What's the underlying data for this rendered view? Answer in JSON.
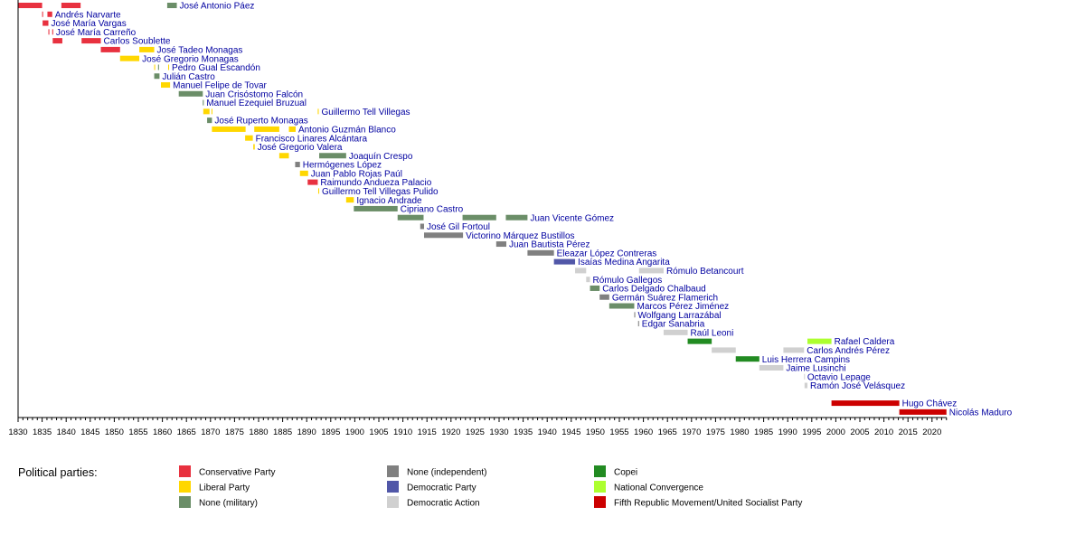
{
  "chart_data": {
    "type": "timeline",
    "xlim": [
      1830,
      2023
    ],
    "tick_labels": [
      "1830",
      "1835",
      "1840",
      "1845",
      "1850",
      "1855",
      "1860",
      "1865",
      "1870",
      "1875",
      "1880",
      "1885",
      "1890",
      "1895",
      "1900",
      "1905",
      "1910",
      "1915",
      "1920",
      "1925",
      "1930",
      "1935",
      "1940",
      "1945",
      "1950",
      "1955",
      "1960",
      "1965",
      "1970",
      "1975",
      "1980",
      "1985",
      "1990",
      "1995",
      "2000",
      "2005",
      "2010",
      "2015",
      "2020"
    ],
    "legend_title": "Political parties:",
    "parties": {
      "C": {
        "name": "Conservative Party",
        "color": "#e8313f"
      },
      "L": {
        "name": "Liberal Party",
        "color": "#ffd700"
      },
      "M": {
        "name": "None (military)",
        "color": "#6b8e68"
      },
      "I": {
        "name": "None (independent)",
        "color": "#808080"
      },
      "D": {
        "name": "Democratic Party",
        "color": "#5157a8"
      },
      "AD": {
        "name": "Democratic Action",
        "color": "#d0d0d0"
      },
      "CO": {
        "name": "Copei",
        "color": "#228b22"
      },
      "NC": {
        "name": "National Convergence",
        "color": "#adff2f"
      },
      "MVR": {
        "name": "Fifth Republic Movement/United Socialist Party",
        "color": "#cc0000"
      }
    },
    "legend_order": [
      "C",
      "L",
      "M",
      "I",
      "D",
      "AD",
      "CO",
      "NC",
      "MVR"
    ],
    "rows": [
      {
        "name": "José Antonio Páez",
        "terms": [
          [
            1830,
            1835,
            "C"
          ],
          [
            1839,
            1843,
            "C"
          ],
          [
            1861,
            1863,
            "M"
          ]
        ]
      },
      {
        "name": "Andrés Narvarte",
        "terms": [
          [
            1835,
            1835.2,
            "C"
          ],
          [
            1836.1,
            1837.1,
            "C"
          ]
        ]
      },
      {
        "name": "José María Vargas",
        "terms": [
          [
            1835.1,
            1836.3,
            "C"
          ]
        ]
      },
      {
        "name": "José María Carreño",
        "terms": [
          [
            1836.3,
            1836.5,
            "C"
          ],
          [
            1837.1,
            1837.3,
            "C"
          ]
        ]
      },
      {
        "name": "Carlos Soublette",
        "terms": [
          [
            1837.2,
            1839.2,
            "C"
          ],
          [
            1843.2,
            1847.2,
            "C"
          ]
        ]
      },
      {
        "name": "José Tadeo Monagas",
        "terms": [
          [
            1847.2,
            1851.2,
            "C"
          ],
          [
            1855.2,
            1858.3,
            "L"
          ]
        ]
      },
      {
        "name": "José Gregorio Monagas",
        "terms": [
          [
            1851.2,
            1855.2,
            "L"
          ]
        ]
      },
      {
        "name": "Pedro Gual Escandón",
        "terms": [
          [
            1858.3,
            1858.5,
            "L"
          ],
          [
            1859.1,
            1859.3,
            "M"
          ],
          [
            1861.2,
            1861.4,
            "L"
          ]
        ]
      },
      {
        "name": "Julián Castro",
        "terms": [
          [
            1858.3,
            1859.4,
            "M"
          ]
        ]
      },
      {
        "name": "Manuel Felipe de Tovar",
        "terms": [
          [
            1859.7,
            1861.6,
            "L"
          ]
        ]
      },
      {
        "name": "Juan Crisóstomo Falcón",
        "terms": [
          [
            1863.4,
            1868.4,
            "M"
          ]
        ]
      },
      {
        "name": "Manuel Ezequiel Bruzual",
        "terms": [
          [
            1868.4,
            1868.6,
            "M"
          ]
        ]
      },
      {
        "name": "Guillermo Tell Villegas",
        "terms": [
          [
            1868.5,
            1869.8,
            "L"
          ],
          [
            1870.2,
            1870.4,
            "L"
          ],
          [
            1892.3,
            1892.5,
            "L"
          ]
        ]
      },
      {
        "name": "José Ruperto Monagas",
        "terms": [
          [
            1869.3,
            1870.3,
            "M"
          ]
        ]
      },
      {
        "name": "Antonio Guzmán Blanco",
        "terms": [
          [
            1870.3,
            1877.3,
            "L"
          ],
          [
            1879.1,
            1884.3,
            "L"
          ],
          [
            1886.3,
            1887.7,
            "L"
          ]
        ]
      },
      {
        "name": "Francisco Linares Alcántara",
        "terms": [
          [
            1877.2,
            1878.8,
            "L"
          ]
        ]
      },
      {
        "name": "José Gregorio Valera",
        "terms": [
          [
            1878.9,
            1879.2,
            "L"
          ]
        ]
      },
      {
        "name": "Joaquín Crespo",
        "terms": [
          [
            1884.3,
            1886.3,
            "L"
          ],
          [
            1892.6,
            1898.2,
            "M"
          ]
        ]
      },
      {
        "name": "Hermógenes López",
        "terms": [
          [
            1887.6,
            1888.6,
            "I"
          ]
        ]
      },
      {
        "name": "Juan Pablo Rojas Paúl",
        "terms": [
          [
            1888.6,
            1890.3,
            "L"
          ]
        ]
      },
      {
        "name": "Raimundo Andueza Palacio",
        "terms": [
          [
            1890.2,
            1892.3,
            "C"
          ]
        ]
      },
      {
        "name": "Guillermo Tell Villegas Pulido",
        "terms": [
          [
            1892.4,
            1892.6,
            "L"
          ]
        ]
      },
      {
        "name": "Ignacio Andrade",
        "terms": [
          [
            1898.2,
            1899.8,
            "L"
          ]
        ]
      },
      {
        "name": "Cipriano Castro",
        "terms": [
          [
            1899.8,
            1908.9,
            "M"
          ]
        ]
      },
      {
        "name": "Juan Vicente Gómez",
        "terms": [
          [
            1908.9,
            1914.3,
            "M"
          ],
          [
            1922.4,
            1929.4,
            "M"
          ],
          [
            1931.4,
            1935.9,
            "M"
          ]
        ]
      },
      {
        "name": "José Gil Fortoul",
        "terms": [
          [
            1913.6,
            1914.4,
            "I"
          ]
        ]
      },
      {
        "name": "Victorino Márquez Bustillos",
        "terms": [
          [
            1914.4,
            1922.5,
            "I"
          ]
        ]
      },
      {
        "name": "Juan Bautista Pérez",
        "terms": [
          [
            1929.4,
            1931.5,
            "I"
          ]
        ]
      },
      {
        "name": "Eleazar López Contreras",
        "terms": [
          [
            1935.9,
            1941.4,
            "I"
          ]
        ]
      },
      {
        "name": "Isaías Medina Angarita",
        "terms": [
          [
            1941.4,
            1945.8,
            "D"
          ]
        ]
      },
      {
        "name": "Rómulo Betancourt",
        "terms": [
          [
            1945.8,
            1948.1,
            "AD"
          ],
          [
            1959.1,
            1964.2,
            "AD"
          ]
        ]
      },
      {
        "name": "Rómulo Gallegos",
        "terms": [
          [
            1948.1,
            1948.9,
            "AD"
          ]
        ]
      },
      {
        "name": "Carlos Delgado Chalbaud",
        "terms": [
          [
            1948.9,
            1950.9,
            "M"
          ]
        ]
      },
      {
        "name": "Germán Suárez Flamerich",
        "terms": [
          [
            1950.9,
            1952.9,
            "I"
          ]
        ]
      },
      {
        "name": "Marcos Pérez Jiménez",
        "terms": [
          [
            1952.9,
            1958.1,
            "M"
          ]
        ]
      },
      {
        "name": "Wolfgang Larrazábal",
        "terms": [
          [
            1958.1,
            1958.3,
            "I"
          ]
        ]
      },
      {
        "name": "Edgar Sanabria",
        "terms": [
          [
            1958.9,
            1959.1,
            "I"
          ]
        ]
      },
      {
        "name": "Raúl Leoni",
        "terms": [
          [
            1964.2,
            1969.2,
            "AD"
          ]
        ]
      },
      {
        "name": "Rafael Caldera",
        "terms": [
          [
            1969.2,
            1974.2,
            "CO"
          ],
          [
            1994.1,
            1999.1,
            "NC"
          ]
        ]
      },
      {
        "name": "Carlos Andrés Pérez",
        "terms": [
          [
            1974.2,
            1979.2,
            "AD"
          ],
          [
            1989.1,
            1993.4,
            "AD"
          ]
        ]
      },
      {
        "name": "Luis Herrera Campins",
        "terms": [
          [
            1979.2,
            1984.1,
            "CO"
          ]
        ]
      },
      {
        "name": "Jaime Lusinchi",
        "terms": [
          [
            1984.1,
            1989.1,
            "AD"
          ]
        ]
      },
      {
        "name": "Octavio Lepage",
        "terms": [
          [
            1993.4,
            1993.5,
            "AD"
          ]
        ]
      },
      {
        "name": "Ramón José Velásquez",
        "terms": [
          [
            1993.5,
            1994.1,
            "AD"
          ]
        ]
      },
      {
        "name": "",
        "terms": []
      },
      {
        "name": "Hugo Chávez",
        "terms": [
          [
            1999.1,
            2013.2,
            "MVR"
          ]
        ]
      },
      {
        "name": "Nicolás Maduro",
        "terms": [
          [
            2013.2,
            2023,
            "MVR"
          ]
        ]
      }
    ]
  }
}
